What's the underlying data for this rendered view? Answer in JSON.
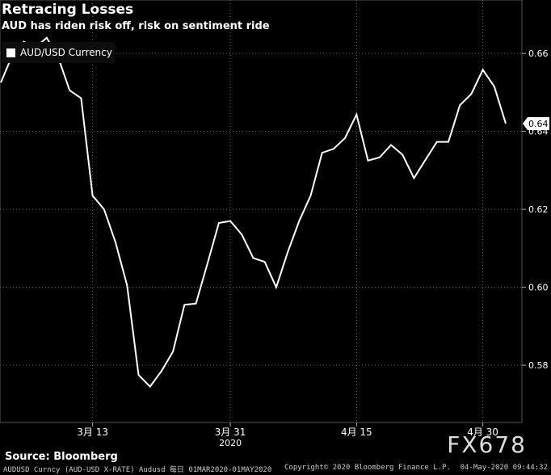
{
  "header": {
    "title": "Retracing Losses",
    "subtitle": "AUD has riden risk off, risk on sentiment ride"
  },
  "footer": {
    "source": "Source: Bloomberg",
    "watermark": "FX678",
    "meta_left": "AUDUSD Curncy (AUD-USD X-RATE) Audusd  每日 01MAR2020-01MAY2020",
    "meta_mid": "Copyright© 2020 Bloomberg Finance L.P.",
    "meta_right": "04-May-2020 09:44:32"
  },
  "chart_data": {
    "type": "line",
    "series": [
      {
        "name": "AUD/USD Currency",
        "color": "#ffffff",
        "last_value_label": "0.64",
        "values": [
          0.6525,
          0.6595,
          0.663,
          0.6615,
          0.664,
          0.659,
          0.6505,
          0.6485,
          0.6235,
          0.62,
          0.6115,
          0.6005,
          0.5775,
          0.5745,
          0.5785,
          0.5835,
          0.5955,
          0.5958,
          0.606,
          0.6165,
          0.617,
          0.6135,
          0.6075,
          0.6065,
          0.6,
          0.609,
          0.617,
          0.6235,
          0.6345,
          0.6355,
          0.6383,
          0.6443,
          0.6325,
          0.6333,
          0.6365,
          0.634,
          0.628,
          0.6327,
          0.6373,
          0.6373,
          0.6467,
          0.6496,
          0.6558,
          0.6515,
          0.642
        ]
      }
    ],
    "x_ticks": [
      "3月 13",
      "3月 31",
      "4月 15",
      "4月 30"
    ],
    "x_year_label": "2020",
    "y_ticks": [
      "0.58",
      "0.60",
      "0.62",
      "0.64",
      "0.66"
    ],
    "ylim": [
      0.5653,
      0.6737
    ]
  }
}
